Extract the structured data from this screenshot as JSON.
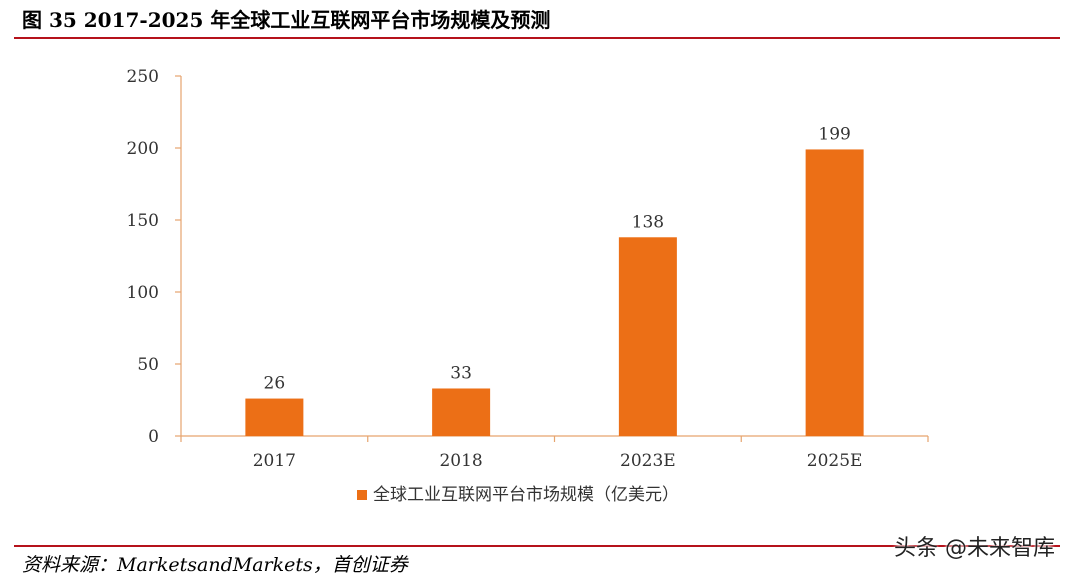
{
  "figure": {
    "title": "图 35 2017-2025 年全球工业互联网平台市场规模及预测",
    "source": "资料来源：MarketsandMarkets，首创证券",
    "watermark": "头条 @未来智库"
  },
  "colors": {
    "bar": "#ec6f16",
    "axis": "#e6a46e",
    "rule": "#b5121b",
    "text": "#333333"
  },
  "chart_data": {
    "type": "bar",
    "categories": [
      "2017",
      "2018",
      "2023E",
      "2025E"
    ],
    "series": [
      {
        "name": "全球工业互联网平台市场规模（亿美元）",
        "values": [
          26,
          33,
          138,
          199
        ],
        "data_labels": [
          "26",
          "33",
          "138",
          "199"
        ]
      }
    ],
    "yticks": [
      0,
      50,
      100,
      150,
      200,
      250
    ],
    "ytick_labels": [
      "0",
      "50",
      "100",
      "150",
      "200",
      "250"
    ],
    "ylim": [
      0,
      250
    ],
    "grid": false,
    "legend_position": "bottom-center"
  }
}
